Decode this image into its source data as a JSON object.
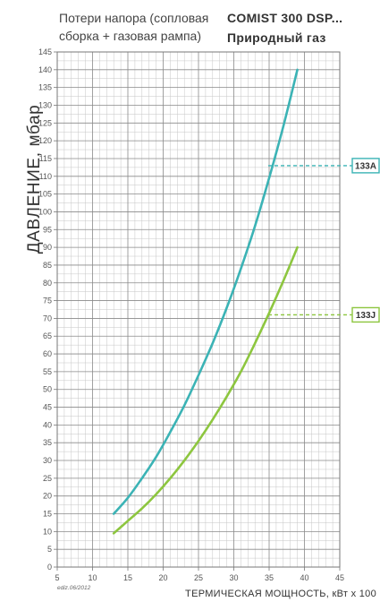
{
  "header": {
    "subtitle_line1": "Потери напора (сопловая",
    "subtitle_line2": "сборка + газовая рампа)",
    "model": "COMIST 300 DSP...",
    "fuel": "Природный газ"
  },
  "footer": {
    "edition": "ediz.06/2012"
  },
  "chart_data": {
    "type": "line",
    "xlabel": "ТЕРМИЧЕСКАЯ МОЩНОСТЬ, кВт х 100",
    "ylabel": "ДАВЛЕНИЕ, мбар",
    "xlim": [
      5,
      45
    ],
    "ylim": [
      0,
      145
    ],
    "x_ticks": [
      5,
      10,
      15,
      20,
      25,
      30,
      35,
      40,
      45
    ],
    "y_ticks": [
      0,
      5,
      10,
      15,
      20,
      25,
      30,
      35,
      40,
      45,
      50,
      55,
      60,
      65,
      70,
      75,
      80,
      85,
      90,
      95,
      100,
      105,
      110,
      115,
      120,
      125,
      130,
      135,
      140,
      145
    ],
    "minor_x_step": 1,
    "minor_y_step": 2.5,
    "grid": true,
    "series": [
      {
        "name": "133A",
        "color": "#3bb3b5",
        "x": [
          13,
          15,
          17,
          19,
          21,
          23,
          25,
          27,
          29,
          31,
          33,
          35,
          37,
          39
        ],
        "y": [
          15,
          19.5,
          25,
          31,
          38,
          45.5,
          54,
          63,
          73,
          84,
          96,
          109.5,
          124,
          140
        ],
        "marker_y": 113
      },
      {
        "name": "133J",
        "color": "#8dc63f",
        "x": [
          13,
          15,
          17,
          19,
          21,
          23,
          25,
          27,
          29,
          31,
          33,
          35,
          37,
          39
        ],
        "y": [
          9.5,
          13,
          16.5,
          20.5,
          25,
          30,
          35.5,
          41.5,
          48,
          55,
          63,
          71.5,
          80.5,
          90
        ],
        "marker_y": 71
      }
    ]
  }
}
